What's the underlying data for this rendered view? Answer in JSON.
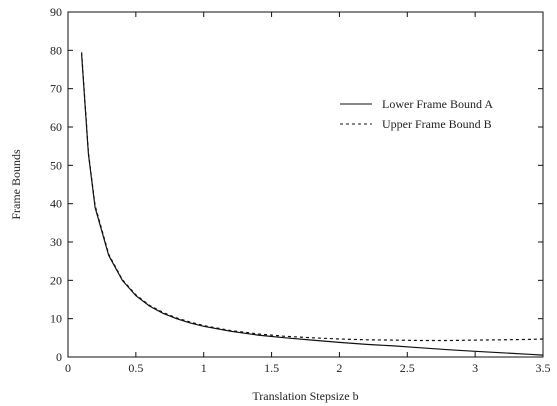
{
  "chart_data": {
    "type": "line",
    "title": "",
    "xlabel": "Translation Stepsize b",
    "ylabel": "Frame Bounds",
    "xlim": [
      0,
      3.5
    ],
    "ylim": [
      0,
      90
    ],
    "x_ticks": [
      0,
      0.5,
      1,
      1.5,
      2,
      2.5,
      3,
      3.5
    ],
    "x_tick_labels": [
      "0",
      "0.5",
      "1",
      "1.5",
      "2",
      "2.5",
      "3",
      "3.5"
    ],
    "y_ticks": [
      0,
      10,
      20,
      30,
      40,
      50,
      60,
      70,
      80,
      90
    ],
    "y_tick_labels": [
      "0",
      "10",
      "20",
      "30",
      "40",
      "50",
      "60",
      "70",
      "80",
      "90"
    ],
    "grid": false,
    "legend_position": "upper-right",
    "series": [
      {
        "name": "Lower Frame Bound A",
        "style": "solid",
        "color": "#111111",
        "x": [
          0.1,
          0.15,
          0.2,
          0.3,
          0.4,
          0.5,
          0.6,
          0.7,
          0.8,
          0.9,
          1.0,
          1.2,
          1.4,
          1.6,
          1.8,
          2.0,
          2.2,
          2.4,
          2.6,
          2.8,
          3.0,
          3.2,
          3.4,
          3.5
        ],
        "values": [
          79,
          53,
          39,
          26.5,
          20,
          16,
          13.3,
          11.4,
          10,
          8.9,
          8,
          6.7,
          5.7,
          5,
          4.4,
          3.8,
          3.3,
          2.9,
          2.4,
          1.9,
          1.5,
          1.1,
          0.7,
          0.5
        ]
      },
      {
        "name": "Upper Frame Bound B",
        "style": "dashed",
        "color": "#111111",
        "x": [
          0.1,
          0.15,
          0.2,
          0.3,
          0.4,
          0.5,
          0.6,
          0.7,
          0.8,
          0.9,
          1.0,
          1.2,
          1.4,
          1.6,
          1.8,
          2.0,
          2.2,
          2.4,
          2.6,
          2.8,
          3.0,
          3.2,
          3.4,
          3.5
        ],
        "values": [
          79.5,
          53.3,
          39.5,
          26.8,
          20.2,
          16.2,
          13.5,
          11.6,
          10.2,
          9.1,
          8.2,
          6.9,
          6,
          5.4,
          5,
          4.7,
          4.5,
          4.4,
          4.3,
          4.3,
          4.4,
          4.5,
          4.6,
          4.7
        ]
      }
    ]
  }
}
